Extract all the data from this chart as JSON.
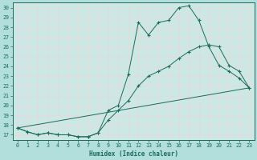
{
  "title": "",
  "xlabel": "Humidex (Indice chaleur)",
  "ylabel": "",
  "bg_outer": "#b2dfdb",
  "bg_plot": "#cce8e4",
  "grid_color": "#e8d8d8",
  "line_color": "#1a6b5a",
  "xlim": [
    -0.5,
    23.5
  ],
  "ylim": [
    16.5,
    30.5
  ],
  "xticks": [
    0,
    1,
    2,
    3,
    4,
    5,
    6,
    7,
    8,
    9,
    10,
    11,
    12,
    13,
    14,
    15,
    16,
    17,
    18,
    19,
    20,
    21,
    22,
    23
  ],
  "yticks": [
    17,
    18,
    19,
    20,
    21,
    22,
    23,
    24,
    25,
    26,
    27,
    28,
    29,
    30
  ],
  "series1": {
    "x": [
      0,
      1,
      2,
      3,
      4,
      5,
      6,
      7,
      8,
      9,
      10,
      11,
      12,
      13,
      14,
      15,
      16,
      17,
      18,
      19,
      20,
      21,
      22,
      23
    ],
    "y": [
      17.7,
      17.3,
      17.0,
      17.2,
      17.0,
      17.0,
      16.8,
      16.8,
      17.2,
      19.5,
      20.0,
      23.2,
      28.5,
      27.2,
      28.5,
      28.7,
      30.0,
      30.2,
      28.7,
      26.0,
      24.1,
      23.5,
      22.8,
      21.8
    ]
  },
  "series2": {
    "x": [
      0,
      1,
      2,
      3,
      4,
      5,
      6,
      7,
      8,
      9,
      10,
      11,
      12,
      13,
      14,
      15,
      16,
      17,
      18,
      19,
      20,
      21,
      22,
      23
    ],
    "y": [
      17.7,
      17.3,
      17.0,
      17.2,
      17.0,
      17.0,
      16.8,
      16.8,
      17.2,
      18.5,
      19.5,
      20.5,
      22.0,
      23.0,
      23.5,
      24.0,
      24.8,
      25.5,
      26.0,
      26.2,
      26.0,
      24.1,
      23.5,
      21.8
    ]
  },
  "series3": {
    "x": [
      0,
      23
    ],
    "y": [
      17.7,
      21.8
    ]
  },
  "figsize": [
    3.2,
    2.0
  ],
  "dpi": 100,
  "xlabel_fontsize": 5.5,
  "tick_fontsize": 4.8
}
